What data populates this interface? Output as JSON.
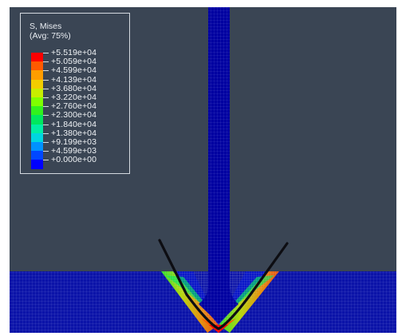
{
  "legend": {
    "title_line1": "S, Mises",
    "title_line2": "(Avg: 75%)",
    "values": [
      "+5.519e+04",
      "+5.059e+04",
      "+4.599e+04",
      "+4.139e+04",
      "+3.680e+04",
      "+3.220e+04",
      "+2.760e+04",
      "+2.300e+04",
      "+1.840e+04",
      "+1.380e+04",
      "+9.199e+03",
      "+4.599e+03",
      "+0.000e+00"
    ],
    "colors": [
      "#ff0000",
      "#ff5a00",
      "#ff9d00",
      "#f2cd00",
      "#c7ee00",
      "#7fff00",
      "#31f21d",
      "#00e85e",
      "#00eea5",
      "#00d6e0",
      "#0092ff",
      "#0047ff",
      "#0000ff"
    ]
  },
  "scene": {
    "background_color": "#3a4554",
    "plate_color": "#0b13a8",
    "indenter_color": "#0000a0",
    "mesh_edge_color": "#dcdcdc"
  }
}
